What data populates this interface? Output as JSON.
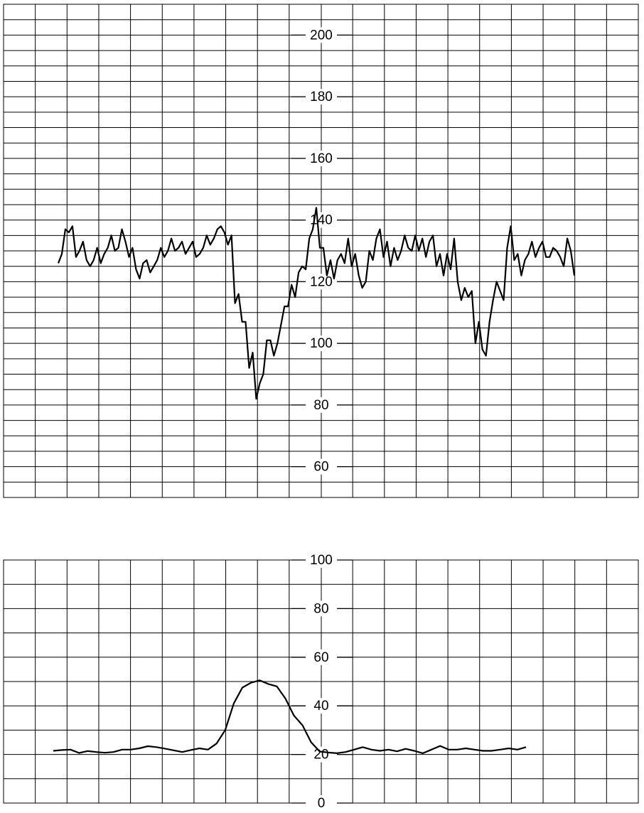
{
  "chart_data": [
    {
      "type": "line",
      "color": "#000000",
      "ylim": [
        50,
        210
      ],
      "yticks": [
        60,
        80,
        100,
        120,
        140,
        160,
        180,
        200
      ],
      "grid": true,
      "grid_step": 5,
      "values": [
        126,
        129,
        137,
        136,
        138,
        128,
        130,
        133,
        127,
        125,
        127,
        131,
        126,
        129,
        131,
        135,
        130,
        131,
        137,
        133,
        128,
        131,
        124,
        121,
        126,
        127,
        123,
        125,
        127,
        131,
        128,
        130,
        134,
        130,
        131,
        133,
        129,
        131,
        133,
        128,
        129,
        131,
        135,
        132,
        134,
        137,
        138,
        136,
        132,
        135,
        113,
        116,
        107,
        107,
        92,
        97,
        82,
        87,
        90,
        101,
        101,
        96,
        100,
        106,
        112,
        112,
        119,
        115,
        123,
        125,
        124,
        134,
        137,
        144,
        131,
        131,
        122,
        127,
        121,
        127,
        129,
        126,
        134,
        125,
        129,
        122,
        118,
        120,
        130,
        127,
        134,
        137,
        128,
        133,
        125,
        131,
        127,
        130,
        135,
        131,
        130,
        135,
        130,
        134,
        128,
        133,
        135,
        125,
        129,
        122,
        129,
        124,
        134,
        120,
        114,
        118,
        115,
        117,
        100,
        107,
        98,
        96,
        107,
        114,
        120,
        117,
        114,
        131,
        138,
        127,
        129,
        122,
        127,
        129,
        133,
        128,
        131,
        133,
        128,
        128,
        131,
        130,
        128,
        125,
        134,
        130,
        122
      ]
    },
    {
      "type": "line",
      "color": "#000000",
      "ylim": [
        0,
        100
      ],
      "yticks": [
        0,
        20,
        40,
        60,
        80,
        100
      ],
      "grid": true,
      "grid_step": 10,
      "values": [
        21.5,
        21.8,
        22,
        20.6,
        21.4,
        21,
        20.7,
        21,
        22,
        22,
        22.5,
        23.4,
        23,
        22.4,
        21.7,
        21,
        21.8,
        22.5,
        22,
        24.5,
        30,
        41,
        47.5,
        49.5,
        50.5,
        49,
        48,
        43,
        36,
        32,
        25,
        21.2,
        20.8,
        20.5,
        21,
        22,
        23,
        22,
        21.5,
        22,
        21.3,
        22.3,
        21.5,
        20.5,
        22,
        23.5,
        22,
        22,
        22.5,
        22,
        21.5,
        21.5,
        22,
        22.5,
        22,
        23
      ]
    }
  ]
}
